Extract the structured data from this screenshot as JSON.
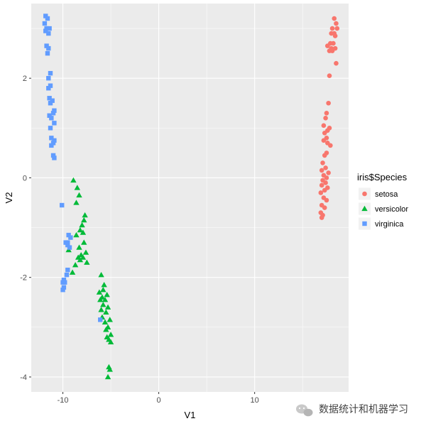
{
  "chart_data": {
    "type": "scatter",
    "xlabel": "V1",
    "ylabel": "V2",
    "xlim": [
      -13.3,
      19.8
    ],
    "ylim": [
      -4.3,
      3.5
    ],
    "x_ticks": [
      -10,
      0,
      10
    ],
    "x_tick_labels": [
      "-10",
      "0",
      "10"
    ],
    "y_ticks": [
      -4,
      -2,
      0,
      2
    ],
    "y_tick_labels": [
      "-4",
      "-2",
      "0",
      "2"
    ],
    "grid": true,
    "legend": {
      "title": "iris$Species",
      "placement": "right"
    },
    "series": [
      {
        "name": "setosa",
        "color": "#F8766D",
        "marker": "circle",
        "points": [
          [
            18.3,
            3.2
          ],
          [
            18.5,
            3.1
          ],
          [
            18.1,
            3.0
          ],
          [
            18.6,
            3.0
          ],
          [
            18.3,
            2.9
          ],
          [
            18.0,
            2.9
          ],
          [
            18.4,
            2.85
          ],
          [
            17.9,
            2.7
          ],
          [
            18.2,
            2.7
          ],
          [
            17.6,
            2.65
          ],
          [
            18.0,
            2.6
          ],
          [
            18.4,
            2.6
          ],
          [
            17.8,
            2.55
          ],
          [
            18.1,
            2.55
          ],
          [
            18.5,
            2.3
          ],
          [
            17.8,
            2.05
          ],
          [
            17.7,
            1.5
          ],
          [
            17.5,
            1.3
          ],
          [
            17.4,
            1.2
          ],
          [
            17.2,
            1.05
          ],
          [
            17.8,
            1.0
          ],
          [
            17.6,
            0.95
          ],
          [
            17.3,
            0.9
          ],
          [
            17.5,
            0.8
          ],
          [
            17.2,
            0.75
          ],
          [
            17.6,
            0.7
          ],
          [
            17.9,
            0.65
          ],
          [
            17.5,
            0.5
          ],
          [
            17.3,
            0.45
          ],
          [
            17.1,
            0.3
          ],
          [
            17.4,
            0.2
          ],
          [
            17.0,
            0.15
          ],
          [
            17.7,
            0.1
          ],
          [
            17.2,
            0.05
          ],
          [
            17.5,
            0.0
          ],
          [
            17.1,
            -0.05
          ],
          [
            17.4,
            -0.1
          ],
          [
            17.0,
            -0.15
          ],
          [
            17.6,
            -0.2
          ],
          [
            17.3,
            -0.25
          ],
          [
            16.9,
            -0.3
          ],
          [
            17.2,
            -0.4
          ],
          [
            17.5,
            -0.45
          ],
          [
            17.0,
            -0.55
          ],
          [
            17.3,
            -0.6
          ],
          [
            16.9,
            -0.7
          ],
          [
            17.1,
            -0.75
          ],
          [
            17.0,
            -0.8
          ]
        ]
      },
      {
        "name": "versicolor",
        "color": "#00BA38",
        "marker": "triangle",
        "points": [
          [
            -8.9,
            -0.05
          ],
          [
            -8.5,
            -0.2
          ],
          [
            -8.3,
            -0.35
          ],
          [
            -8.6,
            -0.5
          ],
          [
            -7.7,
            -0.75
          ],
          [
            -7.8,
            -0.85
          ],
          [
            -8.0,
            -0.95
          ],
          [
            -8.2,
            -1.05
          ],
          [
            -7.9,
            -1.1
          ],
          [
            -8.6,
            -1.15
          ],
          [
            -7.8,
            -1.3
          ],
          [
            -8.3,
            -1.4
          ],
          [
            -9.4,
            -1.45
          ],
          [
            -7.6,
            -1.5
          ],
          [
            -8.1,
            -1.55
          ],
          [
            -8.4,
            -1.6
          ],
          [
            -7.9,
            -1.6
          ],
          [
            -8.2,
            -1.65
          ],
          [
            -7.5,
            -1.7
          ],
          [
            -8.7,
            -1.75
          ],
          [
            -9.0,
            -1.9
          ],
          [
            -6.0,
            -1.95
          ],
          [
            -5.7,
            -2.15
          ],
          [
            -5.8,
            -2.25
          ],
          [
            -6.2,
            -2.3
          ],
          [
            -5.4,
            -2.35
          ],
          [
            -5.9,
            -2.4
          ],
          [
            -6.1,
            -2.45
          ],
          [
            -5.6,
            -2.45
          ],
          [
            -5.8,
            -2.55
          ],
          [
            -5.3,
            -2.6
          ],
          [
            -6.0,
            -2.65
          ],
          [
            -5.5,
            -2.7
          ],
          [
            -5.9,
            -2.8
          ],
          [
            -5.1,
            -2.85
          ],
          [
            -5.6,
            -2.9
          ],
          [
            -5.3,
            -3.0
          ],
          [
            -5.5,
            -3.05
          ],
          [
            -5.0,
            -3.15
          ],
          [
            -5.4,
            -3.2
          ],
          [
            -5.2,
            -3.25
          ],
          [
            -5.0,
            -3.3
          ],
          [
            -5.2,
            -3.8
          ],
          [
            -5.1,
            -3.85
          ],
          [
            -5.3,
            -4.0
          ]
        ]
      },
      {
        "name": "virginica",
        "color": "#619CFF",
        "marker": "square",
        "points": [
          [
            -11.8,
            3.25
          ],
          [
            -11.6,
            3.2
          ],
          [
            -11.9,
            3.1
          ],
          [
            -11.7,
            3.0
          ],
          [
            -11.4,
            3.0
          ],
          [
            -11.8,
            2.95
          ],
          [
            -11.5,
            2.9
          ],
          [
            -11.7,
            2.65
          ],
          [
            -11.5,
            2.6
          ],
          [
            -11.6,
            2.5
          ],
          [
            -11.3,
            2.1
          ],
          [
            -11.5,
            2.0
          ],
          [
            -11.3,
            1.85
          ],
          [
            -11.5,
            1.8
          ],
          [
            -11.4,
            1.6
          ],
          [
            -11.1,
            1.55
          ],
          [
            -11.3,
            1.5
          ],
          [
            -10.9,
            1.35
          ],
          [
            -11.0,
            1.3
          ],
          [
            -11.4,
            1.25
          ],
          [
            -11.2,
            1.2
          ],
          [
            -10.9,
            1.1
          ],
          [
            -11.3,
            1.0
          ],
          [
            -11.2,
            0.8
          ],
          [
            -10.9,
            0.75
          ],
          [
            -11.0,
            0.7
          ],
          [
            -11.2,
            0.65
          ],
          [
            -11.0,
            0.45
          ],
          [
            -10.9,
            0.4
          ],
          [
            -10.1,
            -0.55
          ],
          [
            -9.4,
            -1.15
          ],
          [
            -9.2,
            -1.2
          ],
          [
            -9.5,
            -1.3
          ],
          [
            -9.7,
            -1.3
          ],
          [
            -9.5,
            -1.35
          ],
          [
            -9.3,
            -1.4
          ],
          [
            -9.5,
            -1.85
          ],
          [
            -9.6,
            -1.95
          ],
          [
            -9.9,
            -2.05
          ],
          [
            -9.8,
            -2.1
          ],
          [
            -10.0,
            -2.1
          ],
          [
            -9.9,
            -2.2
          ],
          [
            -10.0,
            -2.25
          ],
          [
            -6.1,
            -2.85
          ]
        ]
      }
    ]
  },
  "watermark": {
    "text": "数据统计和机器学习",
    "icon": "wechat-icon"
  }
}
